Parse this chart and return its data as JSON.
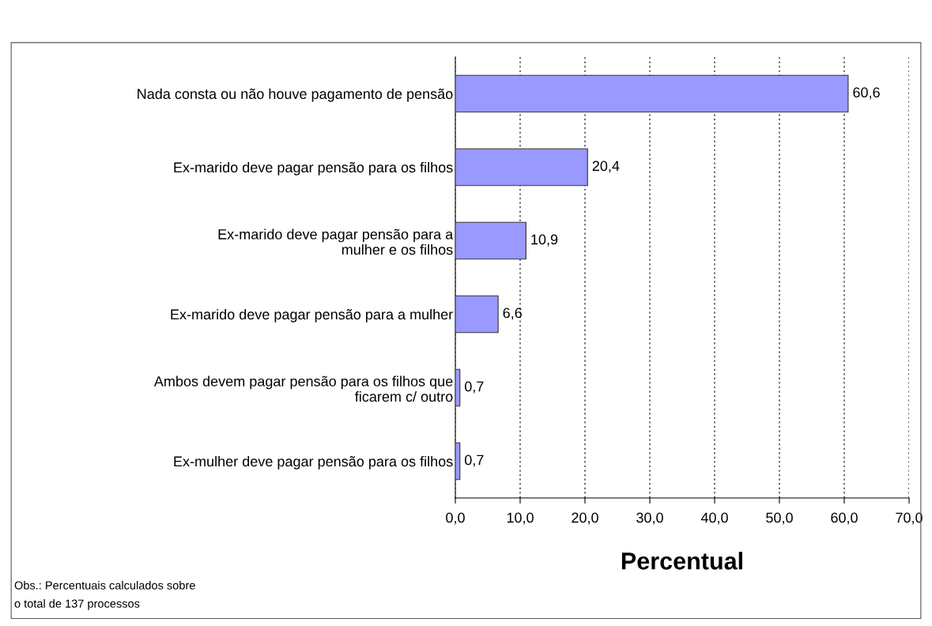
{
  "chart_data": {
    "type": "bar",
    "orientation": "horizontal",
    "categories": [
      "Nada consta ou não houve pagamento de pensão",
      "Ex-marido deve pagar pensão para os filhos",
      "Ex-marido deve pagar pensão para a\nmulher e os filhos",
      "Ex-marido deve pagar pensão para a mulher",
      "Ambos devem pagar pensão para os filhos que\nficarem c/ outro",
      "Ex-mulher deve pagar pensão para os filhos"
    ],
    "values": [
      60.6,
      20.4,
      10.9,
      6.6,
      0.7,
      0.7
    ],
    "value_labels": [
      "60,6",
      "20,4",
      "10,9",
      "6,6",
      "0,7",
      "0,7"
    ],
    "color": "#9999ff",
    "xlabel": "Percentual",
    "xlim": [
      0,
      70
    ],
    "xticks": [
      {
        "value": 0,
        "label": "0,0"
      },
      {
        "value": 10,
        "label": "10,0"
      },
      {
        "value": 20,
        "label": "20,0"
      },
      {
        "value": 30,
        "label": "30,0"
      },
      {
        "value": 40,
        "label": "40,0"
      },
      {
        "value": 50,
        "label": "50,0"
      },
      {
        "value": 60,
        "label": "60,0"
      },
      {
        "value": 70,
        "label": "70,0"
      }
    ],
    "grid": "x",
    "annotations": [
      "Obs.: Percentuais calculados sobre\no total de 137 processos"
    ]
  }
}
